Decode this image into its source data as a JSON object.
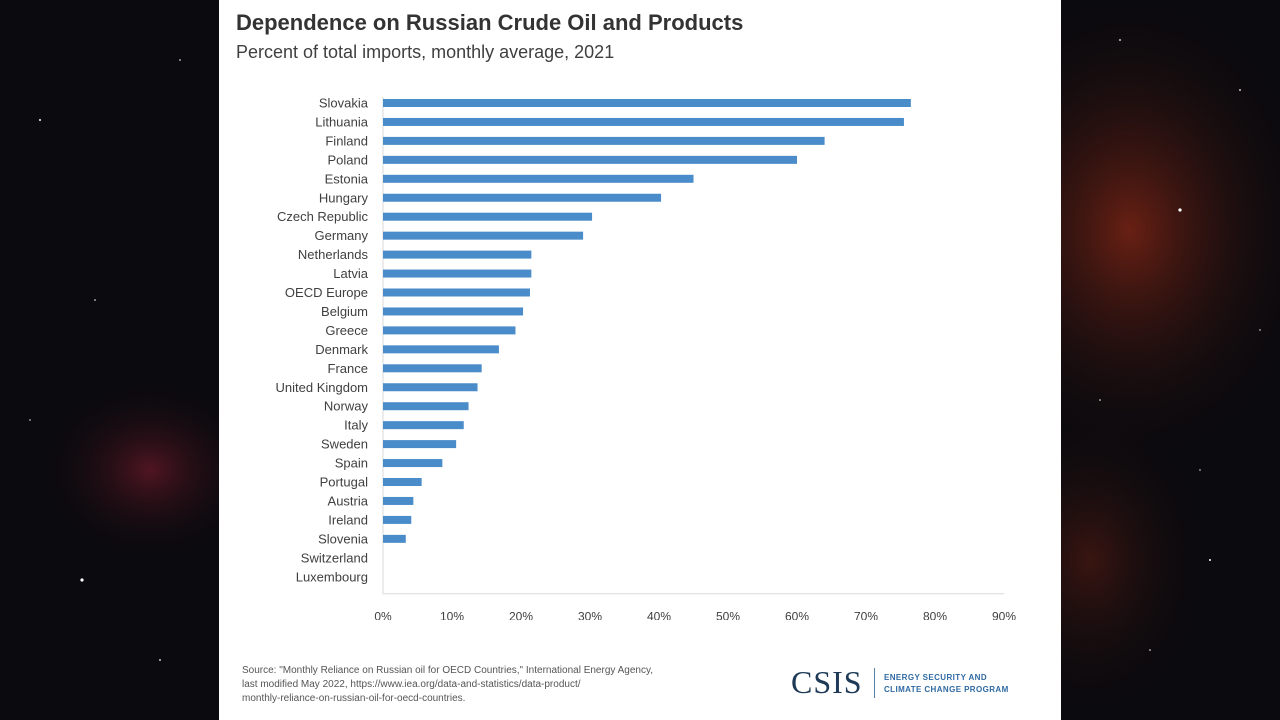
{
  "chart_data": {
    "type": "bar",
    "orientation": "horizontal",
    "title": "Dependence on Russian Crude Oil and Products",
    "subtitle": "Percent of total imports, monthly average, 2021",
    "categories": [
      "Slovakia",
      "Lithuania",
      "Finland",
      "Poland",
      "Estonia",
      "Hungary",
      "Czech Republic",
      "Germany",
      "Netherlands",
      "Latvia",
      "OECD Europe",
      "Belgium",
      "Greece",
      "Denmark",
      "France",
      "United Kingdom",
      "Norway",
      "Italy",
      "Sweden",
      "Spain",
      "Portugal",
      "Austria",
      "Ireland",
      "Slovenia",
      "Switzerland",
      "Luxembourg"
    ],
    "values": [
      76.5,
      75.5,
      64,
      60,
      45,
      40.3,
      30.3,
      29,
      21.5,
      21.5,
      21.3,
      20.3,
      19.2,
      16.8,
      14.3,
      13.7,
      12.4,
      11.7,
      10.6,
      8.6,
      5.6,
      4.4,
      4.1,
      3.3,
      0,
      0
    ],
    "xlabel": "",
    "ylabel": "",
    "xlim": [
      0,
      90
    ],
    "xticks": [
      "0%",
      "10%",
      "20%",
      "30%",
      "40%",
      "50%",
      "60%",
      "70%",
      "80%",
      "90%"
    ],
    "grid": false,
    "colors": {
      "bar": "#4a8cc9",
      "axis": "#d9d9d9"
    }
  },
  "source": {
    "lines": [
      "Source: \"Monthly Reliance on Russian oil for OECD Countries,\" International Energy Agency,",
      "last modified May 2022, https://www.iea.org/data-and-statistics/data-product/",
      "monthly-reliance-on-russian-oil-for-oecd-countries."
    ]
  },
  "logo": {
    "name": "CSIS",
    "program_lines": [
      "ENERGY SECURITY AND",
      "CLIMATE CHANGE PROGRAM"
    ]
  }
}
